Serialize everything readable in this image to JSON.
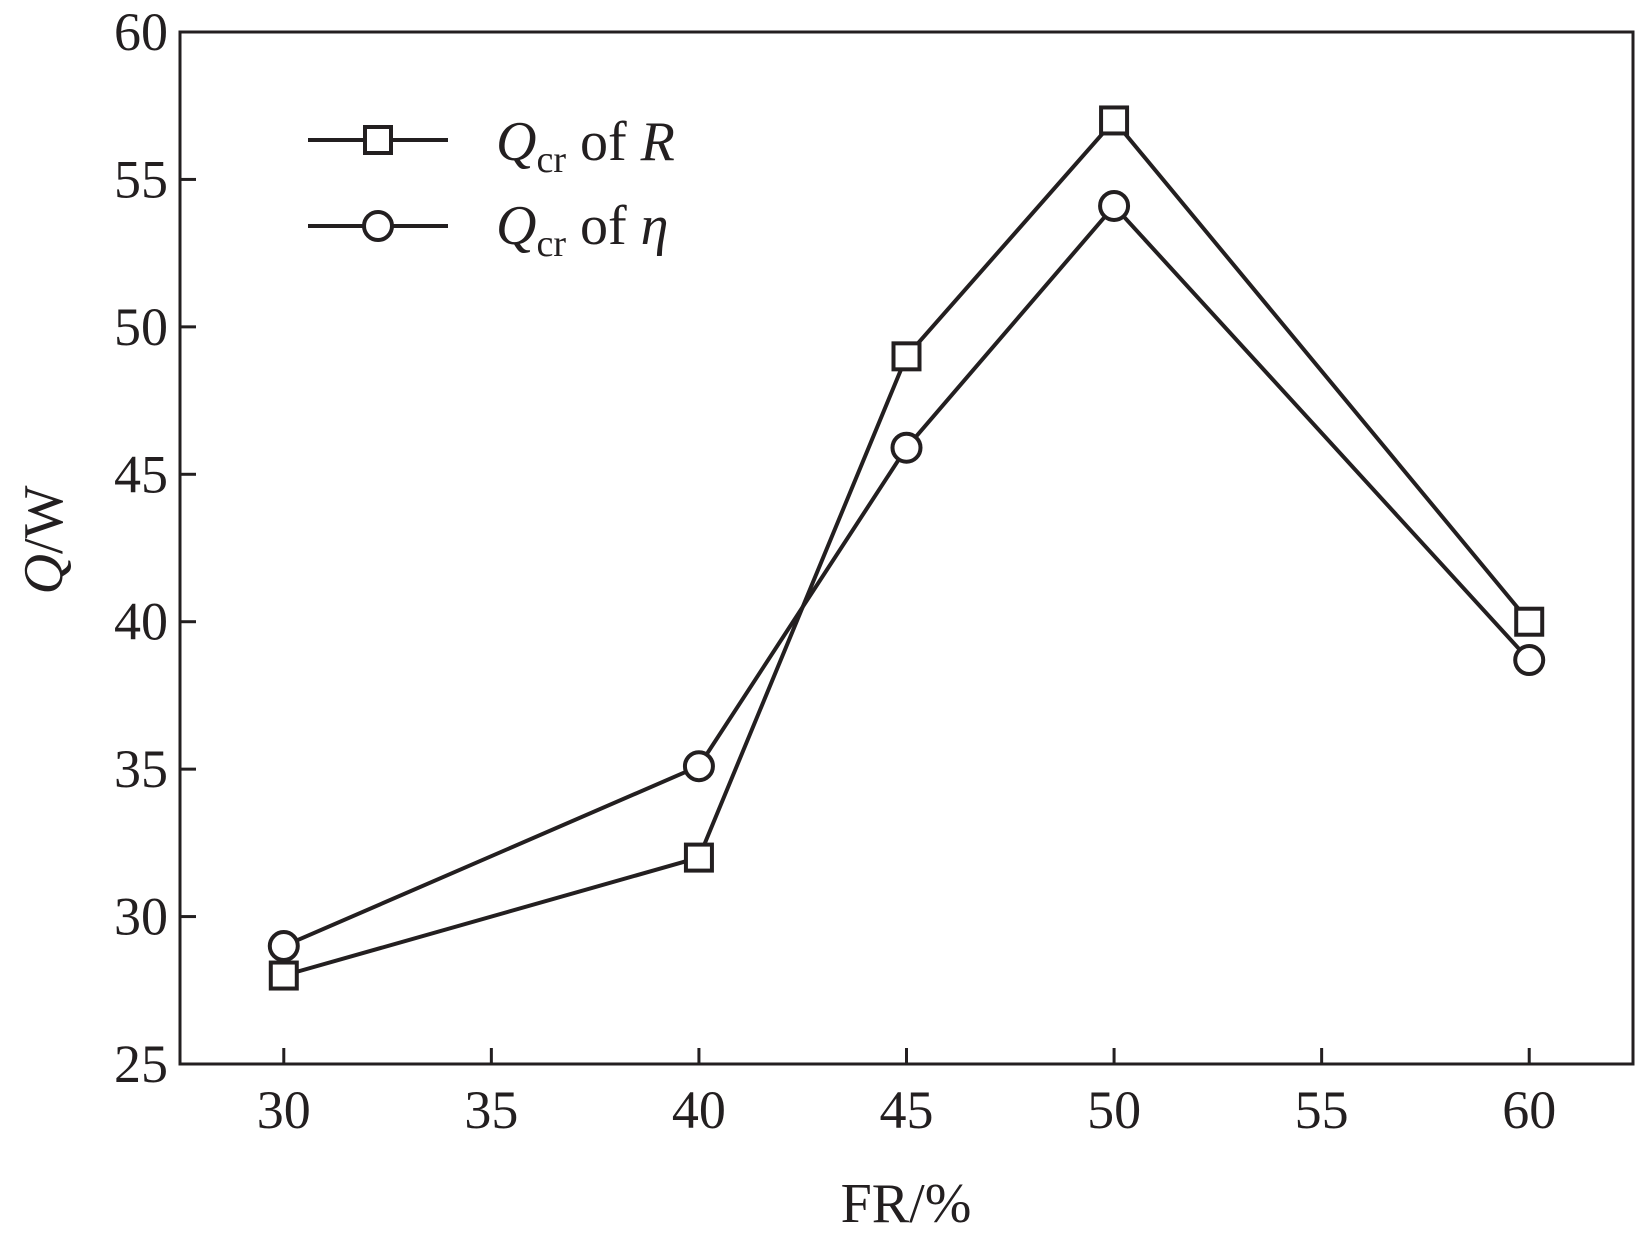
{
  "chart_data": {
    "type": "line",
    "xlabel": "FR/%",
    "ylabel": {
      "var": "Q",
      "unit": "/W"
    },
    "x_ticks": [
      30,
      35,
      40,
      45,
      50,
      55,
      60
    ],
    "y_ticks": [
      25,
      30,
      35,
      40,
      45,
      50,
      55,
      60
    ],
    "xlim": [
      27.5,
      62.5
    ],
    "ylim": [
      25,
      60
    ],
    "grid": false,
    "legend_position": "top-left",
    "series": [
      {
        "name": "Qcr of R",
        "legend": {
          "var": "Q",
          "sub": "cr",
          "mid": " of ",
          "sym": "R"
        },
        "marker": "square",
        "x": [
          30,
          40,
          45,
          50,
          60
        ],
        "y": [
          28,
          32,
          49,
          57,
          40
        ]
      },
      {
        "name": "Qcr of η",
        "legend": {
          "var": "Q",
          "sub": "cr",
          "mid": " of ",
          "sym": "η"
        },
        "marker": "circle",
        "x": [
          30,
          40,
          45,
          50,
          60
        ],
        "y": [
          29,
          35.1,
          45.9,
          54.1,
          38.7
        ]
      }
    ],
    "colors": {
      "line": "#231f20",
      "marker_fill": "#ffffff"
    }
  }
}
